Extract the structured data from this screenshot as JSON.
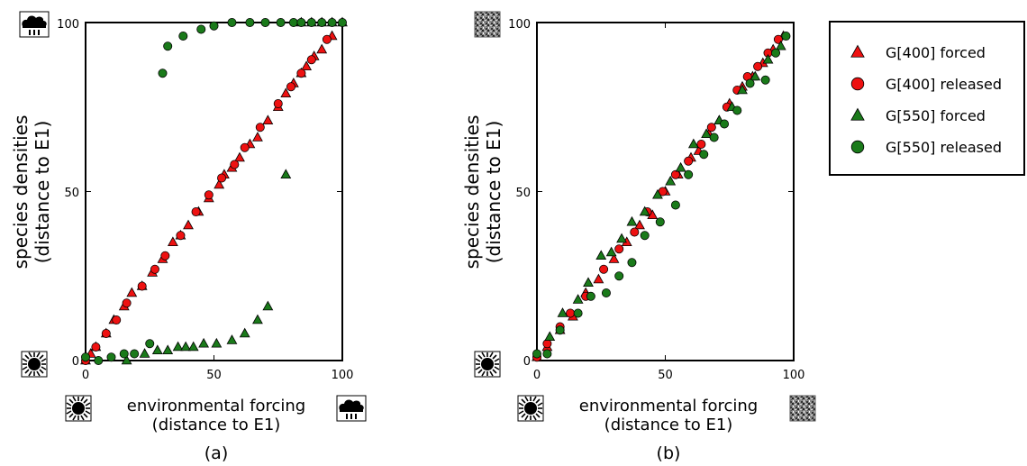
{
  "chart_data": [
    {
      "type": "scatter",
      "panel_label": "(a)",
      "xlabel": [
        "environmental forcing",
        "(distance to E1)"
      ],
      "ylabel": [
        "species densities",
        "(distance to E1)"
      ],
      "xlim": [
        0,
        100
      ],
      "ylim": [
        0,
        100
      ],
      "xticks": [
        "0",
        "50",
        "100"
      ],
      "yticks": [
        "0",
        "50",
        "100"
      ],
      "corner_icons": {
        "low": "sun-icon",
        "high": "rain-cloud-icon"
      },
      "grid": false,
      "series": [
        {
          "name": "G[400] forced",
          "marker": "triangle",
          "color": "#ee1111",
          "x": [
            0,
            2,
            4,
            8,
            11,
            15,
            18,
            22,
            26,
            30,
            34,
            37,
            40,
            44,
            48,
            52,
            54,
            57,
            60,
            64,
            67,
            71,
            75,
            78,
            81,
            84,
            86,
            89,
            92,
            96
          ],
          "y": [
            0,
            2,
            4,
            8,
            12,
            16,
            20,
            22,
            26,
            30,
            35,
            37,
            40,
            44,
            48,
            52,
            55,
            57,
            60,
            64,
            66,
            71,
            75,
            79,
            82,
            85,
            87,
            90,
            92,
            96
          ]
        },
        {
          "name": "G[400] released",
          "marker": "circle",
          "color": "#ee1111",
          "x": [
            0,
            4,
            8,
            12,
            16,
            22,
            27,
            31,
            37,
            43,
            48,
            53,
            58,
            62,
            68,
            75,
            80,
            84,
            88,
            94
          ],
          "y": [
            0,
            4,
            8,
            12,
            17,
            22,
            27,
            31,
            37,
            44,
            49,
            54,
            58,
            63,
            69,
            76,
            81,
            85,
            89,
            95
          ]
        },
        {
          "name": "G[550] forced",
          "marker": "triangle",
          "color": "#1a7a1a",
          "x": [
            16,
            23,
            28,
            32,
            36,
            39,
            42,
            46,
            51,
            57,
            62,
            67,
            71,
            78,
            84,
            88,
            92,
            96,
            100
          ],
          "y": [
            0,
            2,
            3,
            3,
            4,
            4,
            4,
            5,
            5,
            6,
            8,
            12,
            16,
            55,
            100,
            100,
            100,
            100,
            100
          ],
          "note": ""
        },
        {
          "name": "G[550] released",
          "marker": "circle",
          "color": "#1a7a1a",
          "x": [
            0,
            5,
            10,
            15,
            19,
            25,
            30,
            32,
            38,
            45,
            50,
            57,
            64,
            70,
            76,
            81,
            84,
            88,
            92,
            96,
            100
          ],
          "y": [
            1,
            0,
            1,
            2,
            2,
            5,
            85,
            93,
            96,
            98,
            99,
            100,
            100,
            100,
            100,
            100,
            100,
            100,
            100,
            100,
            100
          ]
        }
      ]
    },
    {
      "type": "scatter",
      "panel_label": "(b)",
      "xlabel": [
        "environmental forcing",
        "(distance to E1)"
      ],
      "ylabel": [
        "species densities",
        "(distance to E1)"
      ],
      "xlim": [
        0,
        100
      ],
      "ylim": [
        0,
        100
      ],
      "xticks": [
        "0",
        "50",
        "100"
      ],
      "yticks": [
        "0",
        "50",
        "100"
      ],
      "corner_icons": {
        "low": "sun-icon",
        "high": "noise-pattern-icon"
      },
      "grid": false,
      "series": [
        {
          "name": "G[400] forced",
          "marker": "triangle",
          "color": "#ee1111",
          "x": [
            0,
            4,
            9,
            14,
            19,
            24,
            30,
            35,
            40,
            45,
            50,
            55,
            60,
            63,
            67,
            71,
            75,
            80,
            84,
            88,
            92,
            96
          ],
          "y": [
            1,
            4,
            9,
            13,
            20,
            24,
            30,
            35,
            40,
            43,
            50,
            55,
            60,
            62,
            67,
            71,
            76,
            81,
            84,
            88,
            92,
            96
          ]
        },
        {
          "name": "G[400] released",
          "marker": "circle",
          "color": "#ee1111",
          "x": [
            0,
            4,
            9,
            13,
            19,
            26,
            32,
            38,
            43,
            49,
            54,
            59,
            64,
            68,
            74,
            78,
            82,
            86,
            90,
            94
          ],
          "y": [
            1,
            5,
            10,
            14,
            19,
            27,
            33,
            38,
            44,
            50,
            55,
            59,
            64,
            69,
            75,
            80,
            84,
            87,
            91,
            95
          ]
        },
        {
          "name": "G[550] forced",
          "marker": "triangle",
          "color": "#1a7a1a",
          "x": [
            5,
            10,
            16,
            20,
            25,
            29,
            33,
            37,
            42,
            47,
            52,
            56,
            61,
            66,
            71,
            76,
            80,
            85,
            90,
            95
          ],
          "y": [
            7,
            14,
            18,
            23,
            31,
            32,
            36,
            41,
            44,
            49,
            53,
            57,
            64,
            67,
            71,
            75,
            80,
            84,
            89,
            93
          ]
        },
        {
          "name": "G[550] released",
          "marker": "circle",
          "color": "#1a7a1a",
          "x": [
            0,
            4,
            9,
            16,
            21,
            27,
            32,
            37,
            42,
            48,
            54,
            59,
            65,
            69,
            73,
            78,
            83,
            89,
            93,
            97
          ],
          "y": [
            2,
            2,
            9,
            14,
            19,
            20,
            25,
            29,
            37,
            41,
            46,
            55,
            61,
            66,
            70,
            74,
            82,
            83,
            91,
            96
          ]
        }
      ]
    }
  ],
  "legend": {
    "position": "right",
    "entries": [
      {
        "label": "G[400] forced",
        "marker": "triangle",
        "color": "#ee1111"
      },
      {
        "label": "G[400] released",
        "marker": "circle",
        "color": "#ee1111"
      },
      {
        "label": "G[550] forced",
        "marker": "triangle",
        "color": "#1a7a1a"
      },
      {
        "label": "G[550] released",
        "marker": "circle",
        "color": "#1a7a1a"
      }
    ]
  }
}
